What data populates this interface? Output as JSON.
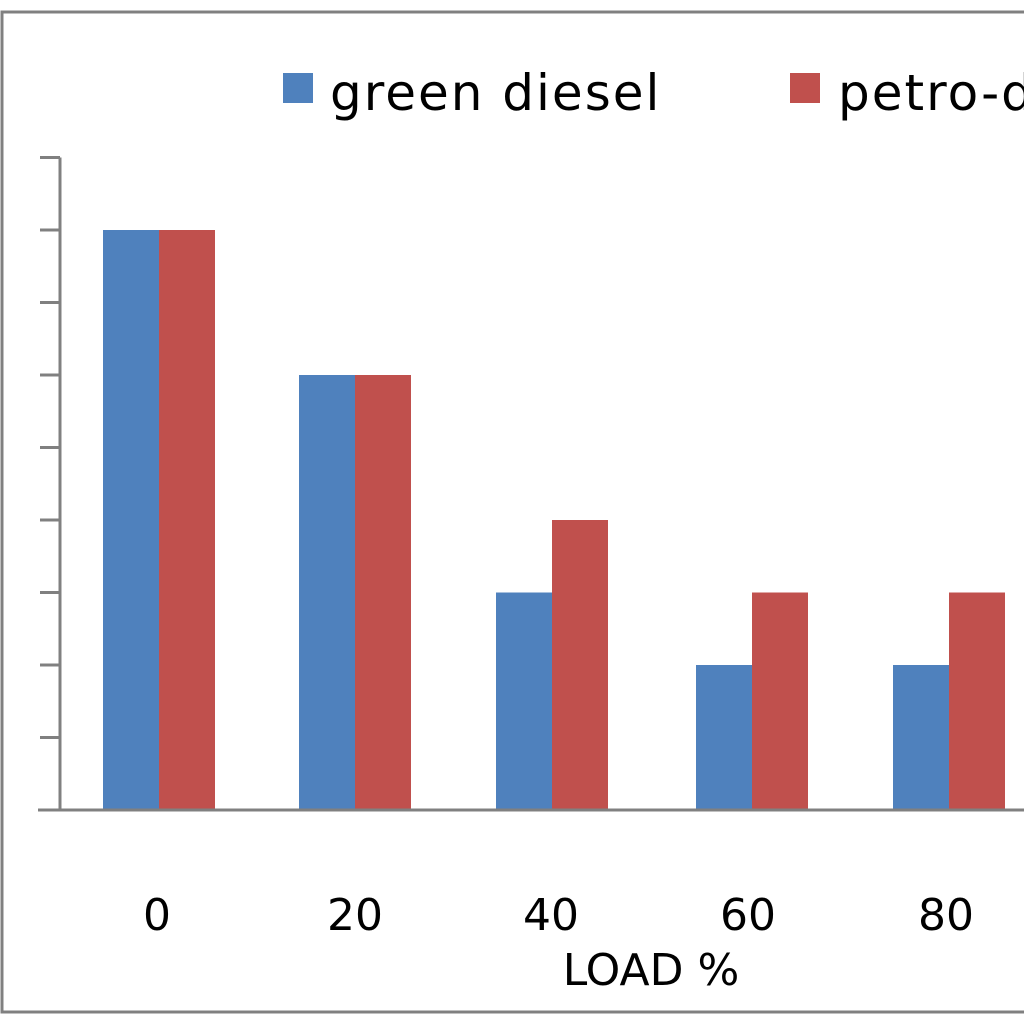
{
  "chart_data": {
    "type": "bar",
    "title": "",
    "xlabel": "LOAD %",
    "ylabel": "",
    "categories": [
      "0",
      "20",
      "40",
      "60",
      "80"
    ],
    "series": [
      {
        "name": "green diesel",
        "values": [
          8,
          6,
          3,
          2,
          2
        ]
      },
      {
        "name": "petro-diesel",
        "values": [
          8,
          6,
          4,
          3,
          3
        ]
      }
    ],
    "ylim": [
      0,
      9
    ],
    "y_tick_step": 1,
    "y_tick_labels_visible": false,
    "grid": false,
    "legend_position": "top",
    "colors": {
      "green diesel": "#4f81bd",
      "petro-diesel": "#c0504d",
      "axis": "#808080",
      "frame": "#808080"
    }
  }
}
